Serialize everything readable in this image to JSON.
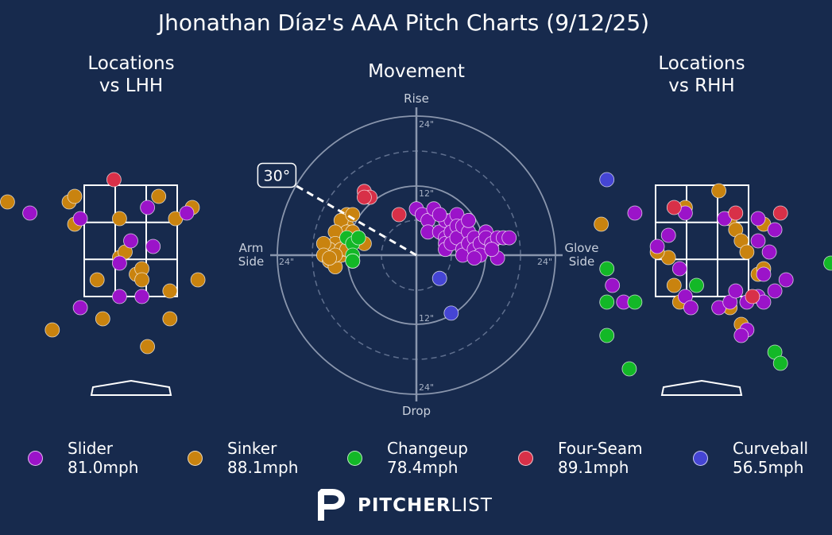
{
  "title": "Jhonathan Díaz's AAA Pitch Charts (9/12/25)",
  "panels": {
    "lhh_title_1": "Locations",
    "lhh_title_2": "vs LHH",
    "movement_title": "Movement",
    "rhh_title_1": "Locations",
    "rhh_title_2": "vs RHH"
  },
  "movement_labels": {
    "rise": "Rise",
    "drop": "Drop",
    "arm_1": "Arm",
    "arm_2": "Side",
    "glove_1": "Glove",
    "glove_2": "Side",
    "ring_12": "12\"",
    "ring_24": "24\"",
    "angle_label": "30°"
  },
  "colors": {
    "background": "#172a4d",
    "Slider": "#9b13c9",
    "Sinker": "#c9830f",
    "Changeup": "#13b827",
    "Four-Seam": "#d83048",
    "Curveball": "#4545d4"
  },
  "chart_data": [
    {
      "type": "scatter",
      "title": "Locations vs LHH",
      "series": [
        {
          "name": "Slider",
          "points": [
            [
              -0.9,
              1.3
            ],
            [
              -0.2,
              1.5
            ],
            [
              0.2,
              1.5
            ],
            [
              -0.9,
              2.9
            ],
            [
              0.4,
              2.4
            ],
            [
              0.0,
              2.5
            ],
            [
              -0.2,
              2.1
            ],
            [
              1.0,
              3.0
            ],
            [
              0.3,
              3.1
            ],
            [
              -1.8,
              3.0
            ]
          ]
        },
        {
          "name": "Sinker",
          "points": [
            [
              -2.2,
              3.2
            ],
            [
              -1.1,
              3.2
            ],
            [
              -1.0,
              3.3
            ],
            [
              -1.0,
              2.8
            ],
            [
              -0.2,
              2.2
            ],
            [
              -0.2,
              2.9
            ],
            [
              -0.1,
              2.3
            ],
            [
              0.5,
              3.3
            ],
            [
              0.1,
              1.9
            ],
            [
              -0.6,
              1.8
            ],
            [
              0.2,
              2.0
            ],
            [
              0.2,
              1.8
            ],
            [
              0.7,
              1.6
            ],
            [
              0.7,
              1.1
            ],
            [
              1.2,
              1.8
            ],
            [
              -0.5,
              1.1
            ],
            [
              -1.4,
              0.9
            ],
            [
              0.3,
              0.6
            ],
            [
              1.1,
              3.1
            ],
            [
              0.8,
              2.9
            ]
          ]
        },
        {
          "name": "Four-Seam",
          "points": [
            [
              -0.3,
              3.6
            ]
          ]
        },
        {
          "name": "Changeup",
          "points": []
        },
        {
          "name": "Curveball",
          "points": []
        }
      ]
    },
    {
      "type": "scatter",
      "title": "Movement",
      "xlabel": "Arm Side / Glove Side",
      "ylabel": "Rise / Drop",
      "xlim": [
        -24,
        24
      ],
      "ylim": [
        -24,
        24
      ],
      "rings": [
        12,
        24
      ],
      "arm_angle": 30,
      "series": [
        {
          "name": "Slider",
          "points": [
            [
              0,
              8
            ],
            [
              1,
              7
            ],
            [
              2,
              6
            ],
            [
              2,
              4
            ],
            [
              3,
              8
            ],
            [
              4,
              4
            ],
            [
              5,
              6
            ],
            [
              5,
              3
            ],
            [
              5,
              2
            ],
            [
              5,
              1
            ],
            [
              6,
              6
            ],
            [
              6,
              4
            ],
            [
              6,
              2
            ],
            [
              7,
              7
            ],
            [
              7,
              5
            ],
            [
              7,
              3
            ],
            [
              8,
              5
            ],
            [
              8,
              1
            ],
            [
              8,
              0
            ],
            [
              9,
              4
            ],
            [
              9,
              2
            ],
            [
              9,
              6
            ],
            [
              10,
              3
            ],
            [
              10,
              1
            ],
            [
              11,
              2
            ],
            [
              11,
              0
            ],
            [
              12,
              4
            ],
            [
              12,
              3
            ],
            [
              13,
              2
            ],
            [
              14,
              3
            ],
            [
              14,
              -0.5
            ],
            [
              15,
              3
            ],
            [
              16,
              3
            ],
            [
              13,
              1
            ],
            [
              10,
              -0.5
            ],
            [
              4,
              7
            ]
          ]
        },
        {
          "name": "Sinker",
          "points": [
            [
              -12,
              7
            ],
            [
              -12,
              5
            ],
            [
              -13,
              6
            ],
            [
              -11,
              7
            ],
            [
              -12,
              4
            ],
            [
              -14,
              4
            ],
            [
              -14,
              2
            ],
            [
              -15,
              1
            ],
            [
              -16,
              2
            ],
            [
              -16,
              0
            ],
            [
              -15,
              -1
            ],
            [
              -14,
              -2
            ],
            [
              -13,
              0
            ],
            [
              -13,
              1
            ],
            [
              -11,
              4
            ],
            [
              -10,
              3
            ],
            [
              -9,
              2
            ],
            [
              -12,
              1
            ],
            [
              -14,
              0
            ],
            [
              -15,
              -0.5
            ]
          ]
        },
        {
          "name": "Changeup",
          "points": [
            [
              -12,
              3
            ],
            [
              -11,
              2
            ],
            [
              -10,
              3
            ],
            [
              -11,
              0
            ],
            [
              -11,
              -1
            ],
            [
              -11,
              -1
            ]
          ]
        },
        {
          "name": "Four-Seam",
          "points": [
            [
              -9,
              11
            ],
            [
              -8,
              10
            ],
            [
              -9,
              10
            ],
            [
              -3,
              7
            ]
          ]
        },
        {
          "name": "Curveball",
          "points": [
            [
              4,
              -4
            ],
            [
              6,
              -10
            ]
          ]
        }
      ]
    },
    {
      "type": "scatter",
      "title": "Locations vs RHH",
      "series": [
        {
          "name": "Slider",
          "points": [
            [
              -1.2,
              3.0
            ],
            [
              -0.3,
              3.0
            ],
            [
              0.4,
              2.9
            ],
            [
              1.0,
              2.9
            ],
            [
              -0.6,
              2.6
            ],
            [
              -0.8,
              2.4
            ],
            [
              -0.4,
              2.0
            ],
            [
              1.0,
              2.5
            ],
            [
              1.2,
              2.3
            ],
            [
              -1.6,
              1.7
            ],
            [
              -1.4,
              1.4
            ],
            [
              -0.3,
              1.5
            ],
            [
              0.3,
              1.3
            ],
            [
              0.5,
              1.4
            ],
            [
              0.6,
              1.6
            ],
            [
              0.8,
              1.4
            ],
            [
              1.0,
              1.5
            ],
            [
              1.1,
              1.9
            ],
            [
              1.3,
              1.6
            ],
            [
              1.5,
              1.8
            ],
            [
              1.3,
              2.7
            ],
            [
              1.1,
              1.4
            ],
            [
              0.8,
              0.9
            ],
            [
              0.7,
              0.8
            ],
            [
              -0.2,
              1.3
            ]
          ]
        },
        {
          "name": "Sinker",
          "points": [
            [
              -1.8,
              2.8
            ],
            [
              -0.3,
              3.1
            ],
            [
              0.3,
              3.4
            ],
            [
              0.5,
              2.9
            ],
            [
              0.6,
              2.7
            ],
            [
              0.7,
              2.5
            ],
            [
              0.8,
              2.3
            ],
            [
              1.1,
              2.8
            ],
            [
              -0.5,
              1.7
            ],
            [
              -0.4,
              1.4
            ],
            [
              -0.6,
              2.2
            ],
            [
              -0.8,
              2.3
            ],
            [
              1.0,
              1.9
            ],
            [
              1.1,
              2.0
            ],
            [
              0.7,
              1.0
            ],
            [
              0.5,
              1.3
            ]
          ]
        },
        {
          "name": "Changeup",
          "points": [
            [
              -1.7,
              2.0
            ],
            [
              -1.7,
              1.4
            ],
            [
              -1.2,
              1.4
            ],
            [
              -1.7,
              0.8
            ],
            [
              -0.1,
              1.7
            ],
            [
              1.3,
              0.5
            ],
            [
              1.4,
              0.3
            ],
            [
              -1.3,
              0.2
            ],
            [
              2.3,
              2.1
            ]
          ]
        },
        {
          "name": "Four-Seam",
          "points": [
            [
              -0.5,
              3.1
            ],
            [
              0.6,
              3.0
            ],
            [
              0.9,
              1.5
            ],
            [
              1.4,
              3.0
            ]
          ]
        },
        {
          "name": "Curveball",
          "points": [
            [
              -1.7,
              3.6
            ]
          ]
        }
      ]
    }
  ],
  "legend": [
    {
      "name": "Slider",
      "velo": "81.0mph"
    },
    {
      "name": "Sinker",
      "velo": "88.1mph"
    },
    {
      "name": "Changeup",
      "velo": "78.4mph"
    },
    {
      "name": "Four-Seam",
      "velo": "89.1mph"
    },
    {
      "name": "Curveball",
      "velo": "56.5mph"
    }
  ],
  "brand": {
    "bold": "PITCHER",
    "light": "LIST"
  }
}
